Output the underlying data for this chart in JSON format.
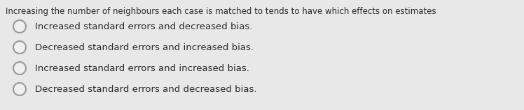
{
  "question": "Increasing the number of neighbours each case is matched to tends to have which effects on estimates",
  "options": [
    "Increased standard errors and decreased bias.",
    "Decreased standard errors and increased bias.",
    "Increased standard errors and increased bias.",
    "Decreased standard errors and decreased bias."
  ],
  "bg_color": "#e8e8e8",
  "text_color": "#2a2a2a",
  "question_fontsize": 8.5,
  "option_fontsize": 9.5,
  "circle_facecolor": "#f0f0f0",
  "circle_edge_color": "#999999",
  "circle_linewidth": 1.5
}
